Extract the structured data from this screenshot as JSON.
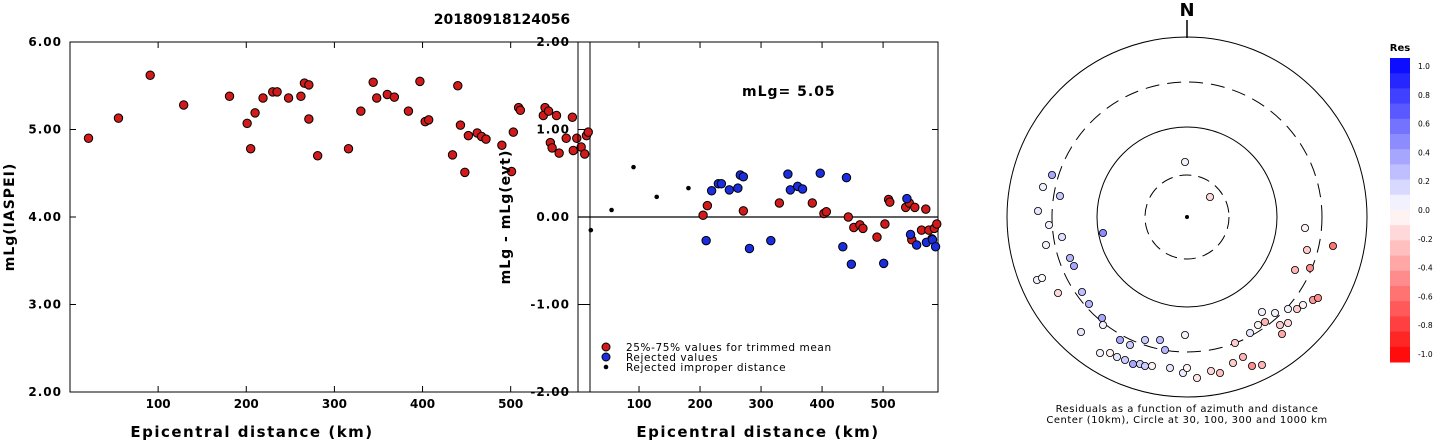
{
  "page_title": "20180918124056",
  "north_label": "N",
  "chart_data": [
    {
      "type": "scatter",
      "ylabel": "mLg(IASPEI)",
      "xlabel": "Epicentral distance (km)",
      "xlim": [
        0,
        590
      ],
      "ylim": [
        2.0,
        6.0
      ],
      "x_ticks": [
        100,
        200,
        300,
        400,
        500
      ],
      "y_ticks": [
        "2.00",
        "3.00",
        "4.00",
        "5.00",
        "6.00"
      ],
      "color": "#d11a1a",
      "points": [
        [
          21,
          4.9
        ],
        [
          55,
          5.13
        ],
        [
          91,
          5.62
        ],
        [
          129,
          5.28
        ],
        [
          181,
          5.38
        ],
        [
          201,
          5.07
        ],
        [
          205,
          4.78
        ],
        [
          210,
          5.19
        ],
        [
          219,
          5.36
        ],
        [
          230,
          5.43
        ],
        [
          235,
          5.43
        ],
        [
          248,
          5.36
        ],
        [
          262,
          5.38
        ],
        [
          266,
          5.53
        ],
        [
          271,
          5.51
        ],
        [
          271,
          5.12
        ],
        [
          281,
          4.7
        ],
        [
          316,
          4.78
        ],
        [
          330,
          5.21
        ],
        [
          344,
          5.54
        ],
        [
          348,
          5.36
        ],
        [
          360,
          5.4
        ],
        [
          368,
          5.37
        ],
        [
          384,
          5.21
        ],
        [
          397,
          5.55
        ],
        [
          403,
          5.09
        ],
        [
          407,
          5.11
        ],
        [
          434,
          4.71
        ],
        [
          440,
          5.5
        ],
        [
          443,
          5.05
        ],
        [
          448,
          4.51
        ],
        [
          452,
          4.93
        ],
        [
          462,
          4.96
        ],
        [
          467,
          4.92
        ],
        [
          472,
          4.89
        ],
        [
          490,
          4.82
        ],
        [
          501,
          4.52
        ],
        [
          503,
          4.97
        ],
        [
          509,
          5.25
        ],
        [
          511,
          5.22
        ],
        [
          537,
          5.16
        ],
        [
          539,
          5.25
        ],
        [
          543,
          5.21
        ],
        [
          545,
          4.85
        ],
        [
          547,
          4.79
        ],
        [
          552,
          5.16
        ],
        [
          555,
          4.73
        ],
        [
          563,
          4.9
        ],
        [
          570,
          5.14
        ],
        [
          571,
          4.76
        ],
        [
          575,
          4.9
        ],
        [
          580,
          4.8
        ],
        [
          584,
          4.72
        ],
        [
          586,
          4.93
        ],
        [
          588,
          4.97
        ]
      ]
    },
    {
      "type": "scatter",
      "ylabel": "mLg - mLg(evt)",
      "xlabel": "Epicentral distance (km)",
      "annotation": "mLg= 5.05",
      "xlim": [
        0,
        590
      ],
      "ylim": [
        -2.0,
        2.0
      ],
      "x_ticks": [
        100,
        200,
        300,
        400,
        500
      ],
      "y_ticks": [
        "-2.00",
        "-1.00",
        "0.00",
        "1.00",
        "2.00"
      ],
      "series": [
        {
          "name": "25%-75% values for trimmed mean",
          "color": "#d11a1a",
          "points": [
            [
              205,
              0.02
            ],
            [
              212,
              0.13
            ],
            [
              271,
              0.07
            ],
            [
              330,
              0.16
            ],
            [
              384,
              0.16
            ],
            [
              403,
              0.04
            ],
            [
              407,
              0.06
            ],
            [
              443,
              0.0
            ],
            [
              452,
              -0.12
            ],
            [
              462,
              -0.09
            ],
            [
              467,
              -0.13
            ],
            [
              490,
              -0.23
            ],
            [
              503,
              -0.08
            ],
            [
              509,
              0.2
            ],
            [
              511,
              0.17
            ],
            [
              537,
              0.11
            ],
            [
              543,
              0.16
            ],
            [
              547,
              -0.26
            ],
            [
              552,
              0.11
            ],
            [
              563,
              -0.15
            ],
            [
              570,
              0.09
            ],
            [
              575,
              -0.15
            ],
            [
              580,
              -0.25
            ],
            [
              584,
              -0.13
            ],
            [
              588,
              -0.08
            ]
          ]
        },
        {
          "name": "Rejected values",
          "color": "#1a2ee0",
          "points": [
            [
              210,
              -0.27
            ],
            [
              219,
              0.3
            ],
            [
              230,
              0.38
            ],
            [
              235,
              0.38
            ],
            [
              248,
              0.31
            ],
            [
              262,
              0.33
            ],
            [
              266,
              0.48
            ],
            [
              271,
              0.46
            ],
            [
              281,
              -0.36
            ],
            [
              316,
              -0.27
            ],
            [
              344,
              0.49
            ],
            [
              348,
              0.31
            ],
            [
              360,
              0.35
            ],
            [
              368,
              0.32
            ],
            [
              397,
              0.5
            ],
            [
              434,
              -0.34
            ],
            [
              440,
              0.45
            ],
            [
              448,
              -0.54
            ],
            [
              501,
              -0.53
            ],
            [
              539,
              0.21
            ],
            [
              545,
              -0.2
            ],
            [
              555,
              -0.32
            ],
            [
              571,
              -0.29
            ],
            [
              581,
              -0.26
            ],
            [
              586,
              -0.34
            ]
          ]
        },
        {
          "name": "Rejected improper distance",
          "color": "#000000",
          "points": [
            [
              21,
              -0.15
            ],
            [
              55,
              0.08
            ],
            [
              91,
              0.57
            ],
            [
              129,
              0.23
            ],
            [
              181,
              0.33
            ]
          ]
        }
      ]
    },
    {
      "type": "polar_scatter",
      "title": "Residuals as a function of azimuth and distance",
      "subtitle": "Center (10km), Circle at 30, 100, 300 and 1000 km",
      "colorbar_title": "Res",
      "colorbar_ticks": [
        "1.0",
        "0.8",
        "0.6",
        "0.4",
        "0.2",
        "0.0",
        "-0.2",
        "-0.4",
        "-0.6",
        "-0.8",
        "-1.0"
      ],
      "points": [
        [
          1185,
          162,
          0.05
        ],
        [
          1210,
          197,
          -0.15
        ],
        [
          1103,
          233,
          0.45
        ],
        [
          1052,
          175,
          0.35
        ],
        [
          1043,
          187,
          0.05
        ],
        [
          1060,
          196,
          0.22
        ],
        [
          1038,
          211,
          0.1
        ],
        [
          1049,
          225,
          0.05
        ],
        [
          1062,
          237,
          0.12
        ],
        [
          1046,
          245,
          0.05
        ],
        [
          1070,
          258,
          0.3
        ],
        [
          1074,
          266,
          0.35
        ],
        [
          1037,
          280,
          0.05
        ],
        [
          1042,
          278,
          0.02
        ],
        [
          1058,
          293,
          -0.15
        ],
        [
          1082,
          292,
          0.25
        ],
        [
          1089,
          304,
          0.3
        ],
        [
          1102,
          318,
          0.35
        ],
        [
          1081,
          332,
          0.1
        ],
        [
          1103,
          325,
          0.05
        ],
        [
          1145,
          340,
          0.2
        ],
        [
          1120,
          340,
          0.35
        ],
        [
          1130,
          345,
          0.2
        ],
        [
          1185,
          335,
          0.05
        ],
        [
          1160,
          340,
          0.25
        ],
        [
          1100,
          353,
          0.05
        ],
        [
          1110,
          353,
          -0.05
        ],
        [
          1117,
          357,
          0.1
        ],
        [
          1125,
          360,
          0.2
        ],
        [
          1133,
          364,
          0.35
        ],
        [
          1140,
          364,
          0.2
        ],
        [
          1145,
          366,
          0.2
        ],
        [
          1152,
          366,
          -0.05
        ],
        [
          1165,
          350,
          0.3
        ],
        [
          1170,
          368,
          0.1
        ],
        [
          1183,
          373,
          0.08
        ],
        [
          1187,
          368,
          -0.05
        ],
        [
          1197,
          378,
          -0.1
        ],
        [
          1211,
          371,
          -0.15
        ],
        [
          1220,
          373,
          -0.25
        ],
        [
          1233,
          363,
          -0.2
        ],
        [
          1243,
          357,
          -0.3
        ],
        [
          1252,
          366,
          -0.45
        ],
        [
          1262,
          365,
          -0.3
        ],
        [
          1235,
          343,
          -0.2
        ],
        [
          1250,
          333,
          0.1
        ],
        [
          1258,
          325,
          -0.05
        ],
        [
          1275,
          313,
          0.05
        ],
        [
          1262,
          312,
          0.05
        ],
        [
          1265,
          322,
          -0.3
        ],
        [
          1282,
          334,
          -0.35
        ],
        [
          1280,
          325,
          -0.2
        ],
        [
          1288,
          309,
          0.05
        ],
        [
          1288,
          323,
          -0.15
        ],
        [
          1297,
          309,
          -0.2
        ],
        [
          1303,
          305,
          -0.05
        ],
        [
          1313,
          300,
          -0.4
        ],
        [
          1318,
          298,
          -0.45
        ],
        [
          1295,
          270,
          -0.3
        ],
        [
          1310,
          268,
          -0.45
        ],
        [
          1307,
          250,
          -0.2
        ],
        [
          1305,
          228,
          -0.05
        ],
        [
          1333,
          246,
          -0.55
        ]
      ]
    }
  ]
}
